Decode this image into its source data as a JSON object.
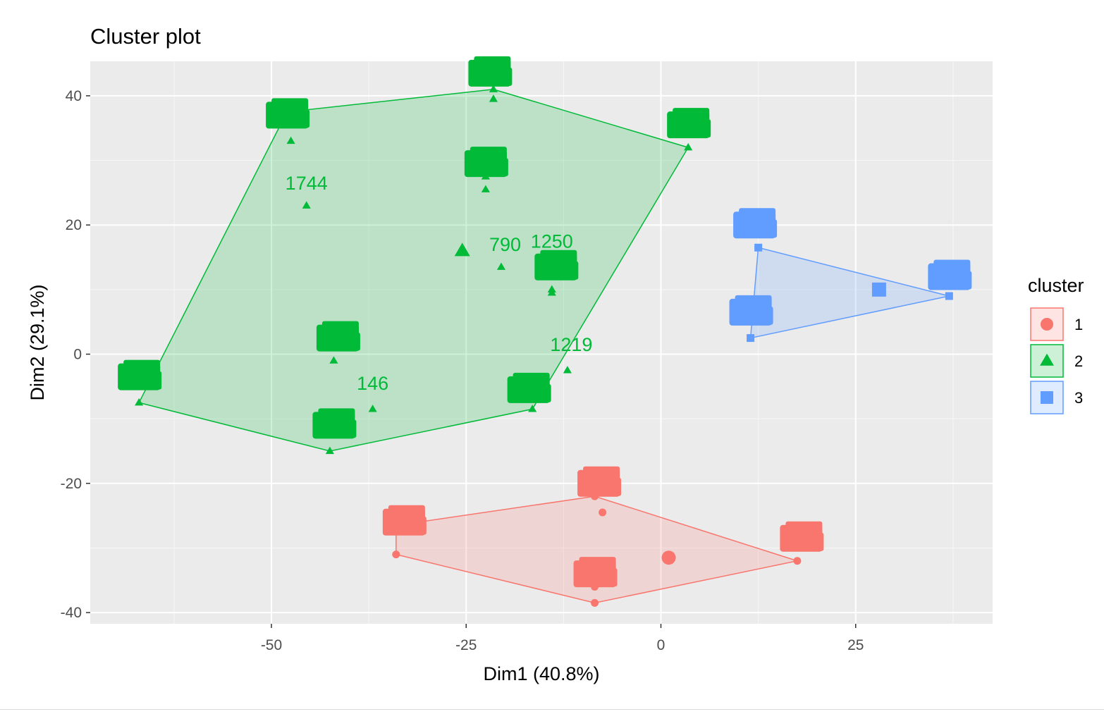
{
  "chart_data": {
    "type": "scatter",
    "title": "Cluster plot",
    "xlabel": "Dim1 (40.8%)",
    "ylabel": "Dim2 (29.1%)",
    "xlim": [
      -73,
      42
    ],
    "ylim": [
      -42,
      45
    ],
    "x_ticks": [
      -50,
      -25,
      0,
      25
    ],
    "y_ticks": [
      -40,
      -20,
      0,
      20,
      40
    ],
    "x_tick_labels": [
      "-50",
      "-25",
      "0",
      "25"
    ],
    "y_tick_labels": [
      "-40",
      "-20",
      "0",
      "20",
      "40"
    ],
    "grid": true,
    "legend": {
      "title": "cluster",
      "position": "right"
    },
    "series": [
      {
        "name": "1",
        "color": "#F8766D",
        "shape": "circle",
        "hull": [
          [
            -34,
            -31
          ],
          [
            -8.5,
            -38.5
          ],
          [
            17.5,
            -32
          ],
          [
            -8.5,
            -22
          ],
          [
            -34,
            -26.5
          ]
        ],
        "center": [
          1,
          -31.5
        ],
        "points": [
          [
            -34,
            -31
          ],
          [
            -34,
            -26.5
          ],
          [
            -8.5,
            -38.5
          ],
          [
            -8.5,
            -36
          ],
          [
            17.5,
            -32
          ],
          [
            -8.5,
            -22
          ],
          [
            -7.5,
            -24.5
          ],
          [
            1,
            -31.5
          ]
        ],
        "label_blocks": [
          {
            "x": -33,
            "y": -26
          },
          {
            "x": -8,
            "y": -20
          },
          {
            "x": -8.5,
            "y": -34
          },
          {
            "x": 18,
            "y": -28.5
          }
        ],
        "text_labels": []
      },
      {
        "name": "2",
        "color": "#00BA38",
        "shape": "triangle",
        "hull": [
          [
            -48,
            37.5
          ],
          [
            -21.5,
            41
          ],
          [
            3.5,
            32
          ],
          [
            -16.5,
            -8.5
          ],
          [
            -42.5,
            -15
          ],
          [
            -67,
            -7.5
          ]
        ],
        "center": [
          -25.5,
          16
        ],
        "points": [
          [
            -48,
            37.5
          ],
          [
            -47.5,
            33
          ],
          [
            -21.5,
            41
          ],
          [
            -21.5,
            39.5
          ],
          [
            3.5,
            32
          ],
          [
            -22.5,
            27.5
          ],
          [
            -22.5,
            25.5
          ],
          [
            -45.5,
            23
          ],
          [
            -20.5,
            13.5
          ],
          [
            -14,
            10
          ],
          [
            -14,
            9.5
          ],
          [
            -42,
            -1
          ],
          [
            -12,
            -2.5
          ],
          [
            -37,
            -8.5
          ],
          [
            -16.5,
            -8.5
          ],
          [
            -42.5,
            -12.5
          ],
          [
            -42.5,
            -15
          ],
          [
            -67,
            -7.5
          ],
          [
            -67,
            -5
          ]
        ],
        "label_blocks": [
          {
            "x": -48,
            "y": 37
          },
          {
            "x": -22,
            "y": 43.5
          },
          {
            "x": 3.5,
            "y": 35.5
          },
          {
            "x": -22.5,
            "y": 29.5
          },
          {
            "x": -13.5,
            "y": 13.5
          },
          {
            "x": -41.5,
            "y": 2.5
          },
          {
            "x": -17,
            "y": -5.5
          },
          {
            "x": -42,
            "y": -11
          },
          {
            "x": -67,
            "y": -3.5
          }
        ],
        "text_labels": [
          {
            "text": "1744",
            "x": -45.5,
            "y": 25.5
          },
          {
            "text": "790",
            "x": -20,
            "y": 16
          },
          {
            "text": "1250",
            "x": -14,
            "y": 16.5
          },
          {
            "text": "1219",
            "x": -11.5,
            "y": 0.5
          },
          {
            "text": "146",
            "x": -37,
            "y": -5.5
          }
        ]
      },
      {
        "name": "3",
        "color": "#619CFF",
        "shape": "square",
        "hull": [
          [
            12.5,
            16.5
          ],
          [
            37,
            9
          ],
          [
            11.5,
            2.5
          ]
        ],
        "center": [
          28,
          10
        ],
        "points": [
          [
            12.5,
            16.5
          ],
          [
            37,
            9
          ],
          [
            11.5,
            2.5
          ],
          [
            28,
            10
          ]
        ],
        "label_blocks": [
          {
            "x": 12,
            "y": 20
          },
          {
            "x": 37,
            "y": 12
          },
          {
            "x": 11.5,
            "y": 6.5
          }
        ],
        "text_labels": []
      }
    ]
  }
}
